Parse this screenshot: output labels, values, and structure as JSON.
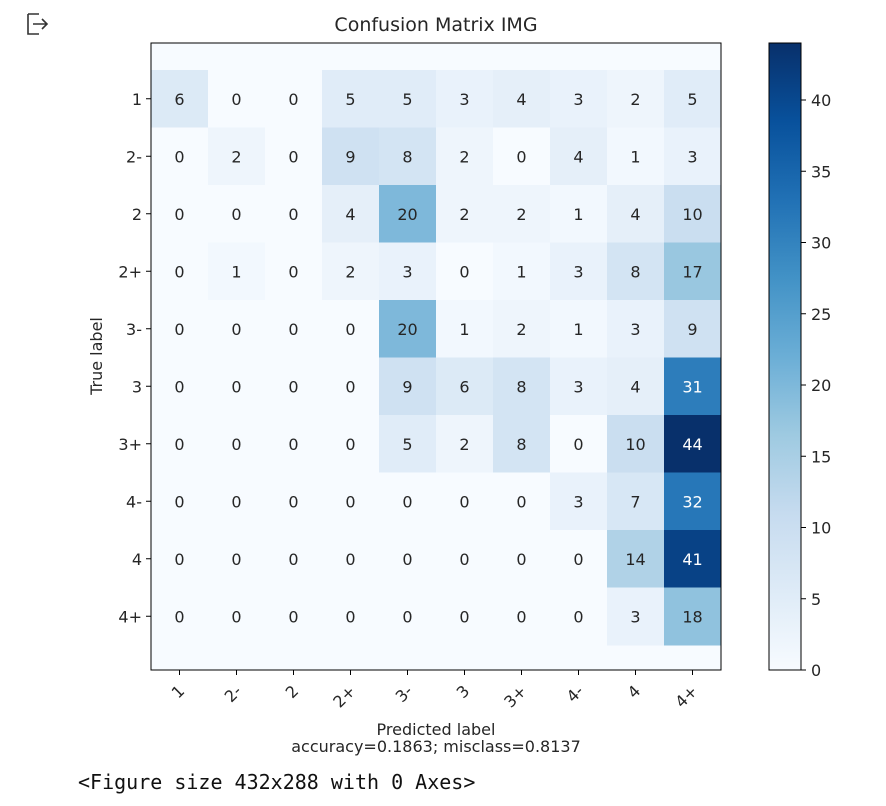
{
  "output": {
    "icon": "output-arrow-icon",
    "figure_repr": "<Figure size 432x288 with 0 Axes>"
  },
  "chart_data": {
    "type": "heatmap",
    "title": "Confusion Matrix IMG",
    "xlabel": "Predicted label",
    "xlabel_sub": "accuracy=0.1863; misclass=0.8137",
    "ylabel": "True label",
    "row_labels": [
      "1",
      "2-",
      "2",
      "2+",
      "3-",
      "3",
      "3+",
      "4-",
      "4",
      "4+"
    ],
    "col_labels": [
      "1",
      "2-",
      "2",
      "2+",
      "3-",
      "3",
      "3+",
      "4-",
      "4",
      "4+"
    ],
    "matrix": [
      [
        6,
        0,
        0,
        5,
        5,
        3,
        4,
        3,
        2,
        5
      ],
      [
        0,
        2,
        0,
        9,
        8,
        2,
        0,
        4,
        1,
        3
      ],
      [
        0,
        0,
        0,
        4,
        20,
        2,
        2,
        1,
        4,
        10
      ],
      [
        0,
        1,
        0,
        2,
        3,
        0,
        1,
        3,
        8,
        17
      ],
      [
        0,
        0,
        0,
        0,
        20,
        1,
        2,
        1,
        3,
        9
      ],
      [
        0,
        0,
        0,
        0,
        9,
        6,
        8,
        3,
        4,
        31
      ],
      [
        0,
        0,
        0,
        0,
        5,
        2,
        8,
        0,
        10,
        44
      ],
      [
        0,
        0,
        0,
        0,
        0,
        0,
        0,
        3,
        7,
        32
      ],
      [
        0,
        0,
        0,
        0,
        0,
        0,
        0,
        0,
        14,
        41
      ],
      [
        0,
        0,
        0,
        0,
        0,
        0,
        0,
        0,
        3,
        18
      ]
    ],
    "colormap": "Blues",
    "color_range": [
      0,
      44
    ],
    "colorbar_ticks": [
      0,
      5,
      10,
      15,
      20,
      25,
      30,
      35,
      40
    ],
    "colors": {
      "low": "#f7fbff",
      "high": "#08306b",
      "text_dark": "#262626",
      "text_light": "#ffffff"
    },
    "grid": false
  }
}
